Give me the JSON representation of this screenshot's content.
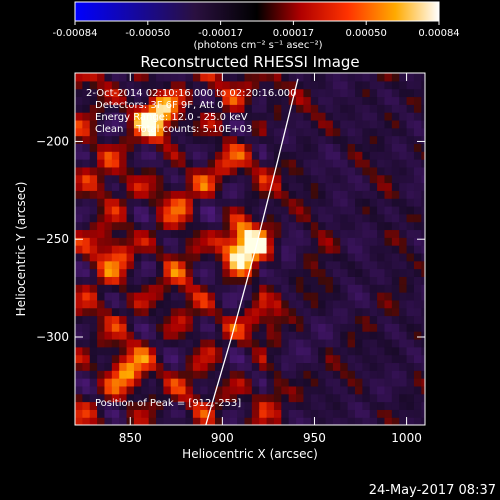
{
  "chart_data": {
    "type": "heatmap",
    "title": "Reconstructed RHESSI Image",
    "xlabel": "Heliocentric X (arcsec)",
    "ylabel": "Heliocentric Y (arcsec)",
    "xlim": [
      820,
      1010
    ],
    "ylim": [
      -345,
      -165
    ],
    "xticks": [
      850,
      900,
      950,
      1000
    ],
    "yticks": [
      -200,
      -250,
      -300
    ],
    "colorbar": {
      "range": [
        -0.00084,
        0.00084
      ],
      "ticks": [
        "-0.00084",
        "-0.00050",
        "-0.00017",
        "0.00017",
        "0.00050",
        "0.00084"
      ],
      "units_label": "(photons cm⁻² s⁻¹ asec⁻²)",
      "colormap": "blue-black-red-yellow-white"
    },
    "annotations": [
      "2-Oct-2014 02:10:16.000 to 02:20:16.000",
      "Detectors: 3F 6F 9F, Att 0",
      "Energy Range: 12.0 - 25.0 keV",
      "Clean    Total counts: 5.10E+03"
    ],
    "peak_label": "Position of Peak = [912,-253]",
    "peak": {
      "x": 912,
      "y": -253
    },
    "secondary_sources": [
      {
        "x": 864,
        "y": -188,
        "strength": 0.75
      },
      {
        "x": 848,
        "y": -318,
        "strength": 0.55
      },
      {
        "x": 843,
        "y": -255,
        "strength": 0.5
      }
    ],
    "limb_curve": [
      {
        "x": 941,
        "y": -168
      },
      {
        "x": 930,
        "y": -210
      },
      {
        "x": 918,
        "y": -255
      },
      {
        "x": 905,
        "y": -300
      },
      {
        "x": 891,
        "y": -345
      }
    ]
  },
  "footer": {
    "timestamp": "24-May-2017 08:37"
  }
}
